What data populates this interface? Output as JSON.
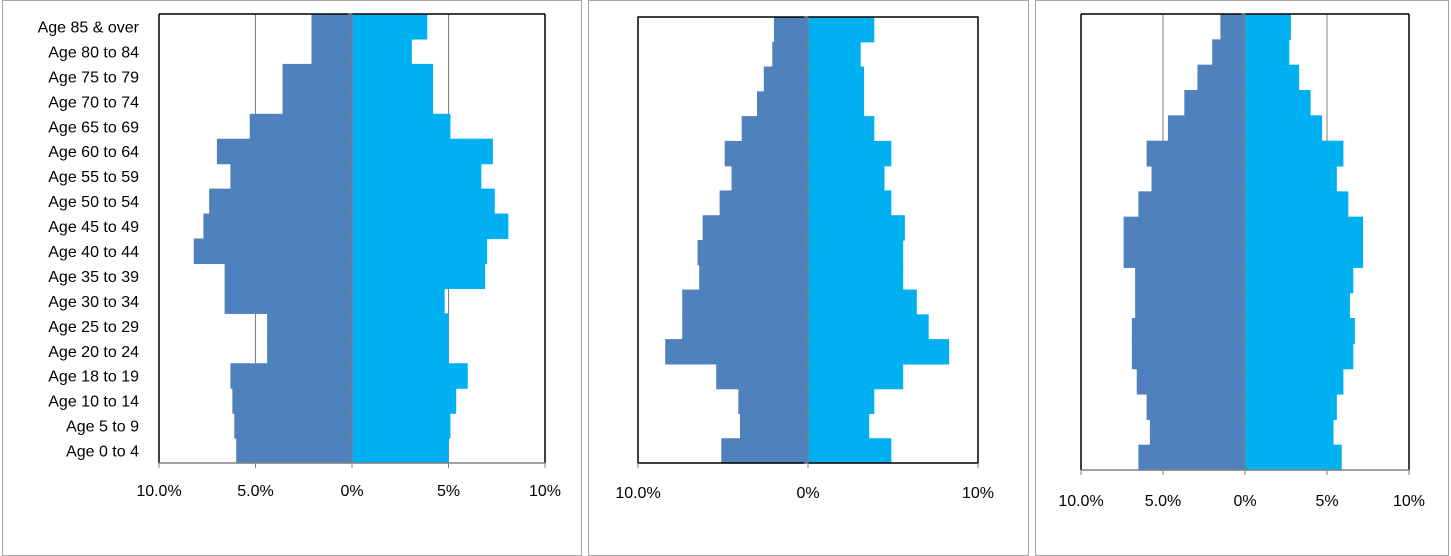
{
  "colors": {
    "male": "#4f81bd",
    "female": "#00b0f0",
    "grid": "#808080",
    "axis": "#808080",
    "frame": "#000000"
  },
  "chart_data": [
    {
      "type": "bar",
      "orientation": "population-pyramid",
      "categories": [
        "Age 0 to 4",
        "Age 5 to 9",
        "Age 10 to 14",
        "Age 18 to 19",
        "Age 20 to 24",
        "Age 25 to 29",
        "Age 30 to 34",
        "Age 35 to 39",
        "Age 40 to 44",
        "Age 45 to 49",
        "Age 50 to 54",
        "Age 55 to 59",
        "Age 60 to 64",
        "Age 65 to 69",
        "Age 70 to 74",
        "Age 75 to 79",
        "Age 80 to 84",
        "Age 85 & over"
      ],
      "series": [
        {
          "values": [
            -6.0,
            -6.1,
            -6.2,
            -6.3,
            -4.4,
            -4.4,
            -6.6,
            -6.6,
            -8.2,
            -7.7,
            -7.4,
            -6.3,
            -7.0,
            -5.3,
            -3.6,
            -3.6,
            -2.1,
            -2.1
          ]
        },
        {
          "values": [
            5.0,
            5.1,
            5.4,
            6.0,
            5.0,
            5.0,
            4.8,
            6.9,
            7.0,
            8.1,
            7.4,
            6.7,
            7.3,
            5.1,
            4.2,
            4.2,
            3.1,
            3.9
          ]
        }
      ],
      "xlim": [
        -10,
        10
      ],
      "tick_values": [
        -10,
        -5,
        0,
        5,
        10
      ],
      "tick_labels": [
        "10.0%",
        "5.0%",
        "0%",
        "5%",
        "10%"
      ],
      "grid": true
    },
    {
      "type": "bar",
      "orientation": "population-pyramid",
      "categories": [
        "Age 0 to 4",
        "Age 5 to 9",
        "Age 10 to 14",
        "Age 18 to 19",
        "Age 20 to 24",
        "Age 25 to 29",
        "Age 30 to 34",
        "Age 35 to 39",
        "Age 40 to 44",
        "Age 45 to 49",
        "Age 50 to 54",
        "Age 55 to 59",
        "Age 60 to 64",
        "Age 65 to 69",
        "Age 70 to 74",
        "Age 75 to 79",
        "Age 80 to 84",
        "Age 85 & over"
      ],
      "series": [
        {
          "values": [
            -5.1,
            -4.0,
            -4.1,
            -5.4,
            -8.4,
            -7.4,
            -7.4,
            -6.4,
            -6.5,
            -6.2,
            -5.2,
            -4.5,
            -4.9,
            -3.9,
            -3.0,
            -2.6,
            -2.1,
            -2.0
          ]
        },
        {
          "values": [
            4.9,
            3.6,
            3.9,
            5.6,
            8.3,
            7.1,
            6.4,
            5.6,
            5.6,
            5.7,
            4.9,
            4.5,
            4.9,
            3.9,
            3.3,
            3.3,
            3.1,
            3.9
          ]
        }
      ],
      "xlim": [
        -10,
        10
      ],
      "tick_values": [
        -10,
        0,
        10
      ],
      "tick_labels": [
        "10.0%",
        "0%",
        "10%"
      ],
      "grid": false
    },
    {
      "type": "bar",
      "orientation": "population-pyramid",
      "categories": [
        "Age 0 to 4",
        "Age 5 to 9",
        "Age 10 to 14",
        "Age 18 to 19",
        "Age 20 to 24",
        "Age 25 to 29",
        "Age 30 to 34",
        "Age 35 to 39",
        "Age 40 to 44",
        "Age 45 to 49",
        "Age 50 to 54",
        "Age 55 to 59",
        "Age 60 to 64",
        "Age 65 to 69",
        "Age 70 to 74",
        "Age 75 to 79",
        "Age 80 to 84",
        "Age 85 & over"
      ],
      "series": [
        {
          "values": [
            -6.5,
            -5.8,
            -6.0,
            -6.6,
            -6.9,
            -6.9,
            -6.7,
            -6.7,
            -7.4,
            -7.4,
            -6.5,
            -5.7,
            -6.0,
            -4.7,
            -3.7,
            -2.9,
            -2.0,
            -1.5
          ]
        },
        {
          "values": [
            5.9,
            5.4,
            5.6,
            6.0,
            6.6,
            6.7,
            6.4,
            6.6,
            7.2,
            7.2,
            6.3,
            5.6,
            6.0,
            4.7,
            4.0,
            3.3,
            2.7,
            2.8
          ]
        }
      ],
      "xlim": [
        -10,
        10
      ],
      "tick_values": [
        -10,
        -5,
        0,
        5,
        10
      ],
      "tick_labels": [
        "10.0%",
        "5.0%",
        "0%",
        "5%",
        "10%"
      ],
      "grid": true
    }
  ]
}
